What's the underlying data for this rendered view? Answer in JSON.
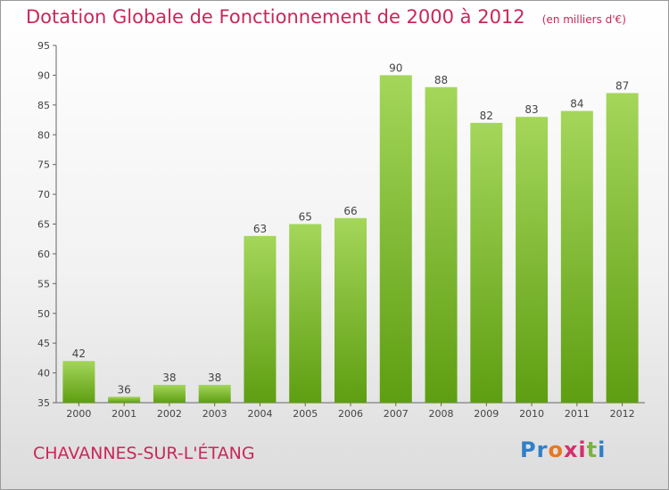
{
  "chart_data": {
    "type": "bar",
    "title": "Dotation Globale de Fonctionnement de 2000 à 2012",
    "subtitle": "(en milliers d'€)",
    "categories": [
      "2000",
      "2001",
      "2002",
      "2003",
      "2004",
      "2005",
      "2006",
      "2007",
      "2008",
      "2009",
      "2010",
      "2011",
      "2012"
    ],
    "values": [
      42,
      36,
      38,
      38,
      63,
      65,
      66,
      90,
      88,
      82,
      83,
      84,
      87
    ],
    "ylim": [
      35,
      95
    ],
    "yticks": [
      35,
      40,
      45,
      50,
      55,
      60,
      65,
      70,
      75,
      80,
      85,
      90,
      95
    ],
    "grid": false,
    "colors": {
      "bar_light": "#a4d65a",
      "bar_dark": "#5e9e12",
      "title": "#c8285a"
    }
  },
  "footer": {
    "location": "CHAVANNES-SUR-L'ÉTANG"
  },
  "logo": {
    "text": "Proxiti",
    "letters": [
      "P",
      "r",
      "o",
      "x",
      "i",
      "t",
      "i"
    ],
    "colors": [
      "#2f7fc9",
      "#2f7fc9",
      "#e87722",
      "#d42f6d",
      "#d42f6d",
      "#7bb342",
      "#2f7fc9"
    ]
  }
}
